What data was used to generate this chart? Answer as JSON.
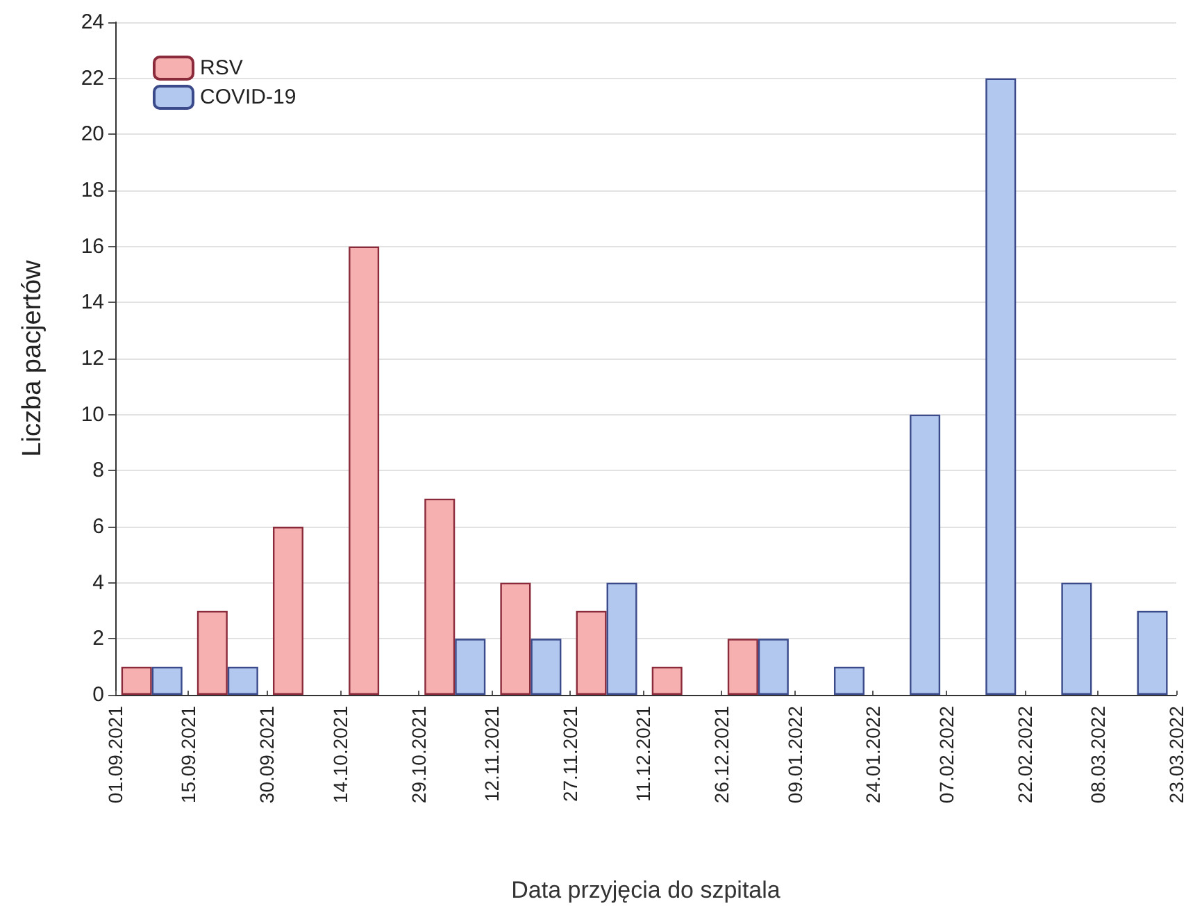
{
  "chart_data": {
    "type": "histogram",
    "xlabel": "Data przyjęcia do szpitala",
    "ylabel": "Liczba pacjertów",
    "bins": [
      "2021-09-01",
      "2021-09-15",
      "2021-09-30",
      "2021-10-14",
      "2021-10-29",
      "2021-11-12",
      "2021-11-27",
      "2021-12-11",
      "2021-12-26",
      "2022-01-09",
      "2022-01-24",
      "2022-02-07",
      "2022-02-22",
      "2022-03-08",
      "2022-03-23"
    ],
    "series": [
      {
        "name": "RSV",
        "color": "#f7b0b0",
        "values": [
          1,
          3,
          6,
          16,
          7,
          4,
          3,
          1,
          2,
          0,
          0,
          0,
          0,
          0
        ]
      },
      {
        "name": "COVID-19",
        "color": "#b3c8ee",
        "values": [
          1,
          1,
          0,
          0,
          2,
          2,
          4,
          0,
          2,
          1,
          10,
          22,
          4,
          3
        ]
      }
    ],
    "xlim": [
      "2021-09-01",
      "2022-03-23"
    ],
    "xticks": [
      {
        "value": "2021-09-01",
        "label": "01.09.2021"
      },
      {
        "value": "2021-09-15",
        "label": "15.09.2021"
      },
      {
        "value": "2021-09-30",
        "label": "30.09.2021"
      },
      {
        "value": "2021-10-14",
        "label": "14.10.2021"
      },
      {
        "value": "2021-10-29",
        "label": "29.10.2021"
      },
      {
        "value": "2021-11-12",
        "label": "12.11.2021"
      },
      {
        "value": "2021-11-27",
        "label": "27.11.2021"
      },
      {
        "value": "2021-12-11",
        "label": "11.12.2021"
      },
      {
        "value": "2021-12-26",
        "label": "26.12.2021"
      },
      {
        "value": "2022-01-09",
        "label": "09.01.2022"
      },
      {
        "value": "2022-01-24",
        "label": "24.01.2022"
      },
      {
        "value": "2022-02-07",
        "label": "07.02.2022"
      },
      {
        "value": "2022-02-22",
        "label": "22.02.2022"
      },
      {
        "value": "2022-03-08",
        "label": "08.03.2022"
      },
      {
        "value": "2022-03-23",
        "label": "23.03.2022"
      }
    ],
    "ylim": [
      0,
      24
    ],
    "yticks": [
      0,
      2,
      4,
      6,
      8,
      10,
      12,
      14,
      16,
      18,
      20,
      22,
      24
    ],
    "grid": "y",
    "legend": "top left"
  }
}
